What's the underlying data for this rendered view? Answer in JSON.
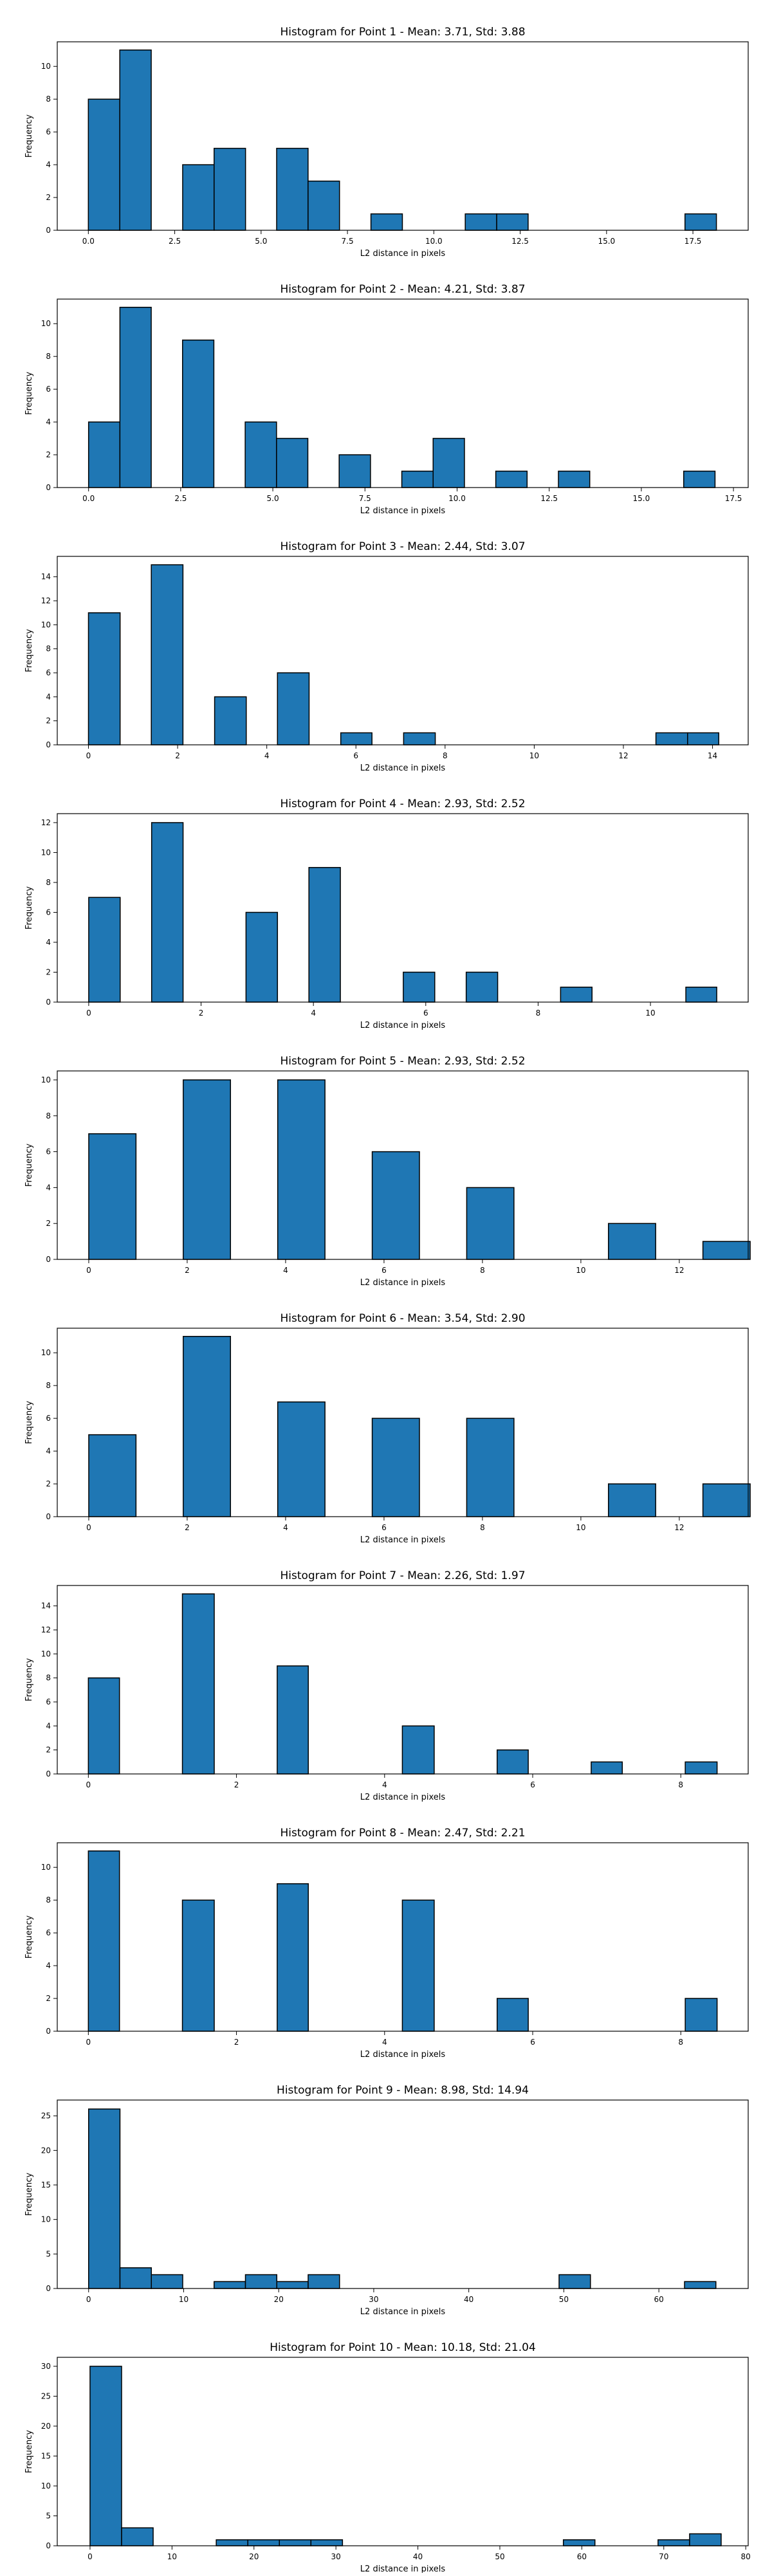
{
  "colors": {
    "bar_fill": "#1f77b4",
    "bar_edge": "#000000",
    "axis": "#000000"
  },
  "chart_data": [
    {
      "type": "bar",
      "title": "Histogram for Point 1 - Mean: 3.71, Std: 3.88",
      "xlabel": "L2 distance in pixels",
      "ylabel": "Frequency",
      "grid": false,
      "xlim": [
        -0.9,
        19.1
      ],
      "ylim": [
        0,
        11.5
      ],
      "xticks": [
        0.0,
        2.5,
        5.0,
        7.5,
        10.0,
        12.5,
        15.0,
        17.5
      ],
      "xtick_labels": [
        "0.0",
        "2.5",
        "5.0",
        "7.5",
        "10.0",
        "12.5",
        "15.0",
        "17.5"
      ],
      "yticks": [
        0,
        2,
        4,
        6,
        8,
        10
      ],
      "ytick_labels": [
        "0",
        "2",
        "4",
        "6",
        "8",
        "10"
      ],
      "bins": [
        [
          0.0,
          0.91
        ],
        [
          0.91,
          1.82
        ],
        [
          2.73,
          3.64
        ],
        [
          3.64,
          4.55
        ],
        [
          5.45,
          6.36
        ],
        [
          6.36,
          7.27
        ],
        [
          8.18,
          9.09
        ],
        [
          10.91,
          11.82
        ],
        [
          11.82,
          12.73
        ],
        [
          17.27,
          18.18
        ]
      ],
      "values": [
        8,
        11,
        4,
        5,
        5,
        3,
        1,
        1,
        1,
        1
      ]
    },
    {
      "type": "bar",
      "title": "Histogram for Point 2 - Mean: 4.21, Std: 3.87",
      "xlabel": "L2 distance in pixels",
      "ylabel": "Frequency",
      "grid": false,
      "xlim": [
        -0.85,
        17.9
      ],
      "ylim": [
        0,
        11.5
      ],
      "xticks": [
        0.0,
        2.5,
        5.0,
        7.5,
        10.0,
        12.5,
        15.0,
        17.5
      ],
      "xtick_labels": [
        "0.0",
        "2.5",
        "5.0",
        "7.5",
        "10.0",
        "12.5",
        "15.0",
        "17.5"
      ],
      "yticks": [
        0,
        2,
        4,
        6,
        8,
        10
      ],
      "ytick_labels": [
        "0",
        "2",
        "4",
        "6",
        "8",
        "10"
      ],
      "bins": [
        [
          0.0,
          0.85
        ],
        [
          0.85,
          1.7
        ],
        [
          2.55,
          3.4
        ],
        [
          4.25,
          5.1
        ],
        [
          5.1,
          5.95
        ],
        [
          6.8,
          7.65
        ],
        [
          8.5,
          9.35
        ],
        [
          9.35,
          10.2
        ],
        [
          11.05,
          11.9
        ],
        [
          12.75,
          13.6
        ],
        [
          16.15,
          17.0
        ]
      ],
      "values": [
        4,
        11,
        9,
        4,
        3,
        2,
        1,
        3,
        1,
        1,
        1
      ]
    },
    {
      "type": "bar",
      "title": "Histogram for Point 3 - Mean: 2.44, Std: 3.07",
      "xlabel": "L2 distance in pixels",
      "ylabel": "Frequency",
      "grid": false,
      "xlim": [
        -0.7,
        14.8
      ],
      "ylim": [
        0,
        15.7
      ],
      "xticks": [
        0,
        2,
        4,
        6,
        8,
        10,
        12,
        14
      ],
      "xtick_labels": [
        "0",
        "2",
        "4",
        "6",
        "8",
        "10",
        "12",
        "14"
      ],
      "yticks": [
        0,
        2,
        4,
        6,
        8,
        10,
        12,
        14
      ],
      "ytick_labels": [
        "0",
        "2",
        "4",
        "6",
        "8",
        "10",
        "12",
        "14"
      ],
      "bins": [
        [
          0.0,
          0.71
        ],
        [
          1.41,
          2.12
        ],
        [
          2.83,
          3.54
        ],
        [
          4.24,
          4.95
        ],
        [
          5.66,
          6.36
        ],
        [
          7.07,
          7.78
        ],
        [
          12.73,
          13.44
        ],
        [
          13.44,
          14.14
        ]
      ],
      "values": [
        11,
        15,
        4,
        6,
        1,
        1,
        1,
        1
      ]
    },
    {
      "type": "bar",
      "title": "Histogram for Point 4 - Mean: 2.93, Std: 2.52",
      "xlabel": "L2 distance in pixels",
      "ylabel": "Frequency",
      "grid": false,
      "xlim": [
        -0.56,
        11.74
      ],
      "ylim": [
        0,
        12.6
      ],
      "xticks": [
        0,
        2,
        4,
        6,
        8,
        10
      ],
      "xtick_labels": [
        "0",
        "2",
        "4",
        "6",
        "8",
        "10"
      ],
      "yticks": [
        0,
        2,
        4,
        6,
        8,
        10,
        12
      ],
      "ytick_labels": [
        "0",
        "2",
        "4",
        "6",
        "8",
        "10",
        "12"
      ],
      "bins": [
        [
          0.0,
          0.56
        ],
        [
          1.12,
          1.68
        ],
        [
          2.8,
          3.36
        ],
        [
          3.92,
          4.48
        ],
        [
          5.6,
          6.16
        ],
        [
          6.72,
          7.28
        ],
        [
          8.4,
          8.96
        ],
        [
          10.63,
          11.18
        ]
      ],
      "values": [
        7,
        12,
        6,
        9,
        2,
        2,
        1,
        1
      ]
    },
    {
      "type": "bar",
      "title": "Histogram for Point 5 - Mean: 2.93, Std: 2.52",
      "xlabel": "L2 distance in pixels",
      "ylabel": "Frequency",
      "grid": false,
      "xlim": [
        -0.64,
        13.4
      ],
      "ylim": [
        0,
        10.5
      ],
      "xticks": [
        0,
        2,
        4,
        6,
        8,
        10,
        12
      ],
      "xtick_labels": [
        "0",
        "2",
        "4",
        "6",
        "8",
        "10",
        "12"
      ],
      "yticks": [
        0,
        2,
        4,
        6,
        8,
        10
      ],
      "ytick_labels": [
        "0",
        "2",
        "4",
        "6",
        "8",
        "10"
      ],
      "bins": [
        [
          0.0,
          0.96
        ],
        [
          1.92,
          2.88
        ],
        [
          3.84,
          4.8
        ],
        [
          5.76,
          6.72
        ],
        [
          7.68,
          8.64
        ],
        [
          10.56,
          11.52
        ],
        [
          12.48,
          13.44
        ]
      ],
      "values": [
        7,
        10,
        10,
        6,
        4,
        2,
        1
      ]
    },
    {
      "type": "bar",
      "title": "Histogram for Point 6 - Mean: 3.54, Std: 2.90",
      "xlabel": "L2 distance in pixels",
      "ylabel": "Frequency",
      "grid": false,
      "xlim": [
        -0.64,
        13.4
      ],
      "ylim": [
        0,
        11.5
      ],
      "xticks": [
        0,
        2,
        4,
        6,
        8,
        10,
        12
      ],
      "xtick_labels": [
        "0",
        "2",
        "4",
        "6",
        "8",
        "10",
        "12"
      ],
      "yticks": [
        0,
        2,
        4,
        6,
        8,
        10
      ],
      "ytick_labels": [
        "0",
        "2",
        "4",
        "6",
        "8",
        "10"
      ],
      "bins": [
        [
          0.0,
          0.96
        ],
        [
          1.92,
          2.88
        ],
        [
          3.84,
          4.8
        ],
        [
          5.76,
          6.72
        ],
        [
          7.68,
          8.64
        ],
        [
          10.56,
          11.52
        ],
        [
          12.48,
          13.44
        ]
      ],
      "values": [
        5,
        11,
        7,
        6,
        6,
        2,
        2
      ]
    },
    {
      "type": "bar",
      "title": "Histogram for Point 7 - Mean: 2.26, Std: 1.97",
      "xlabel": "L2 distance in pixels",
      "ylabel": "Frequency",
      "grid": false,
      "xlim": [
        -0.42,
        8.91
      ],
      "ylim": [
        0,
        15.7
      ],
      "xticks": [
        0,
        2,
        4,
        6,
        8
      ],
      "xtick_labels": [
        "0",
        "2",
        "4",
        "6",
        "8"
      ],
      "yticks": [
        0,
        2,
        4,
        6,
        8,
        10,
        12,
        14
      ],
      "ytick_labels": [
        "0",
        "2",
        "4",
        "6",
        "8",
        "10",
        "12",
        "14"
      ],
      "bins": [
        [
          0.0,
          0.42
        ],
        [
          1.27,
          1.7
        ],
        [
          2.55,
          2.97
        ],
        [
          4.24,
          4.67
        ],
        [
          5.52,
          5.94
        ],
        [
          6.79,
          7.21
        ],
        [
          8.06,
          8.49
        ]
      ],
      "values": [
        8,
        15,
        9,
        4,
        2,
        1,
        1
      ]
    },
    {
      "type": "bar",
      "title": "Histogram for Point 8 - Mean: 2.47, Std: 2.21",
      "xlabel": "L2 distance in pixels",
      "ylabel": "Frequency",
      "grid": false,
      "xlim": [
        -0.42,
        8.91
      ],
      "ylim": [
        0,
        11.5
      ],
      "xticks": [
        0,
        2,
        4,
        6,
        8
      ],
      "xtick_labels": [
        "0",
        "2",
        "4",
        "6",
        "8"
      ],
      "yticks": [
        0,
        2,
        4,
        6,
        8,
        10
      ],
      "ytick_labels": [
        "0",
        "2",
        "4",
        "6",
        "8",
        "10"
      ],
      "bins": [
        [
          0.0,
          0.42
        ],
        [
          1.27,
          1.7
        ],
        [
          2.55,
          2.97
        ],
        [
          4.24,
          4.67
        ],
        [
          5.52,
          5.94
        ],
        [
          8.06,
          8.49
        ]
      ],
      "values": [
        11,
        8,
        9,
        8,
        2,
        2
      ]
    },
    {
      "type": "bar",
      "title": "Histogram for Point 9 - Mean: 8.98, Std: 14.94",
      "xlabel": "L2 distance in pixels",
      "ylabel": "Frequency",
      "grid": false,
      "xlim": [
        -3.3,
        69.4
      ],
      "ylim": [
        0,
        27.3
      ],
      "xticks": [
        0,
        10,
        20,
        30,
        40,
        50,
        60
      ],
      "xtick_labels": [
        "0",
        "10",
        "20",
        "30",
        "40",
        "50",
        "60"
      ],
      "yticks": [
        0,
        5,
        10,
        15,
        20,
        25
      ],
      "ytick_labels": [
        "0",
        "5",
        "10",
        "15",
        "20",
        "25"
      ],
      "bins": [
        [
          0.0,
          3.3
        ],
        [
          3.3,
          6.6
        ],
        [
          6.6,
          9.9
        ],
        [
          13.2,
          16.5
        ],
        [
          16.5,
          19.8
        ],
        [
          19.8,
          23.1
        ],
        [
          23.1,
          26.4
        ],
        [
          49.5,
          52.8
        ],
        [
          62.7,
          66.0
        ]
      ],
      "values": [
        26,
        3,
        2,
        1,
        2,
        1,
        2,
        2,
        1
      ]
    },
    {
      "type": "bar",
      "title": "Histogram for Point 10 - Mean: 10.18, Std: 21.04",
      "xlabel": "L2 distance in pixels",
      "ylabel": "Frequency",
      "grid": false,
      "xlim": [
        -4.0,
        80.3
      ],
      "ylim": [
        0,
        31.5
      ],
      "xticks": [
        0,
        10,
        20,
        30,
        40,
        50,
        60,
        70,
        80
      ],
      "xtick_labels": [
        "0",
        "10",
        "20",
        "30",
        "40",
        "50",
        "60",
        "70",
        "80"
      ],
      "yticks": [
        0,
        5,
        10,
        15,
        20,
        25,
        30
      ],
      "ytick_labels": [
        "0",
        "5",
        "10",
        "15",
        "20",
        "25",
        "30"
      ],
      "bins": [
        [
          0.0,
          3.85
        ],
        [
          3.85,
          7.7
        ],
        [
          15.4,
          19.25
        ],
        [
          19.25,
          23.1
        ],
        [
          23.1,
          26.95
        ],
        [
          26.95,
          30.8
        ],
        [
          57.75,
          61.6
        ],
        [
          69.3,
          73.15
        ],
        [
          73.15,
          77.0
        ]
      ],
      "values": [
        30,
        3,
        1,
        1,
        1,
        1,
        1,
        1,
        2
      ]
    }
  ]
}
